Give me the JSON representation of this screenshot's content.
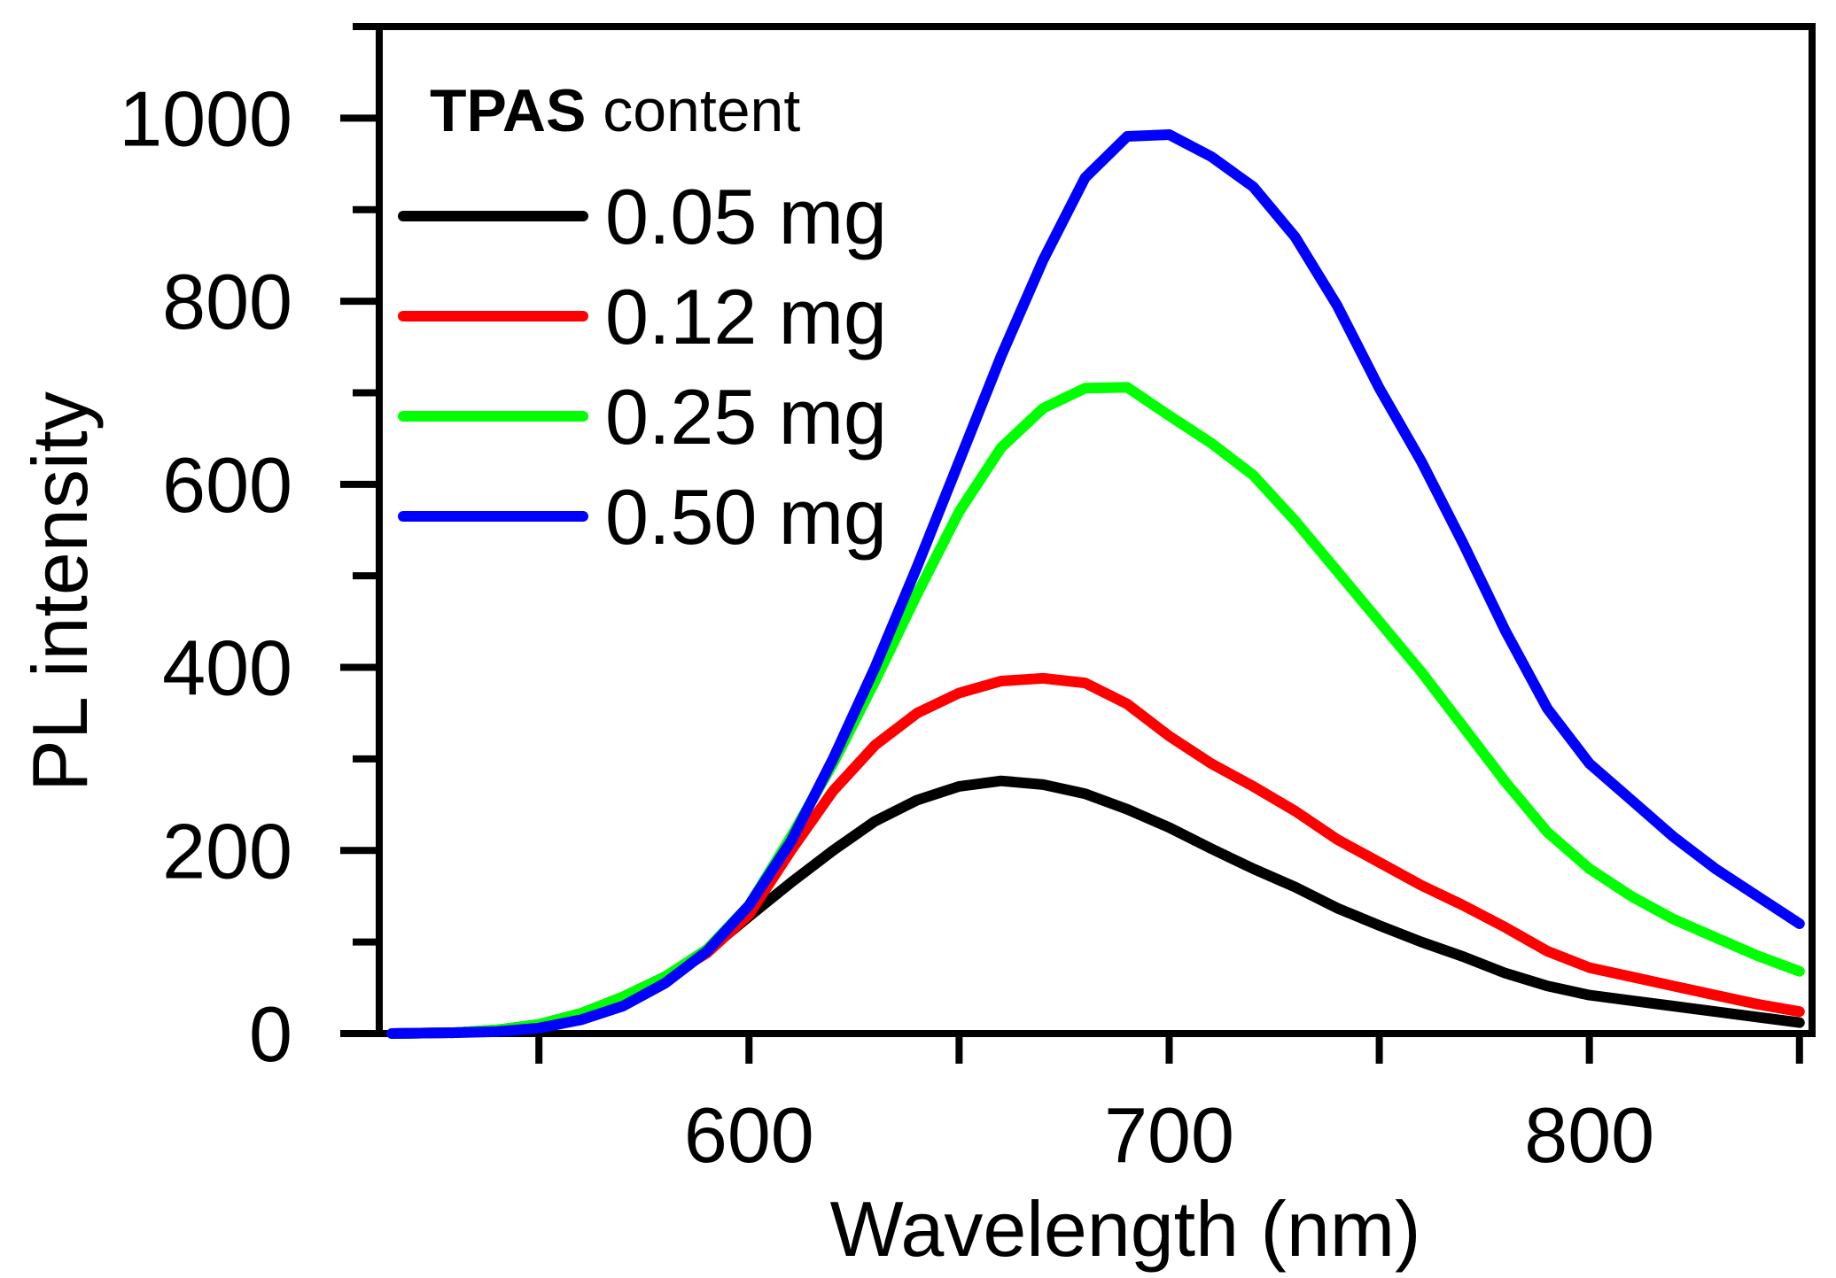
{
  "chart_data": {
    "type": "line",
    "title": "",
    "xlabel": "Wavelength (nm)",
    "ylabel": "PL intensity",
    "xlim": [
      512,
      853
    ],
    "ylim": [
      0,
      1100
    ],
    "xticks_major": [
      600,
      700,
      800
    ],
    "xticks_minor": [
      550,
      650,
      750,
      850
    ],
    "yticks_major": [
      0,
      200,
      400,
      600,
      800,
      1000
    ],
    "yticks_minor": [
      100,
      300,
      500,
      700,
      900,
      1100
    ],
    "grid": false,
    "legend": {
      "position": "top-left",
      "title_bold": "TPAS",
      "title_rest": " content"
    },
    "series": [
      {
        "name": "0.05 mg",
        "color": "#000000",
        "points": [
          [
            515,
            0
          ],
          [
            530,
            1
          ],
          [
            540,
            4
          ],
          [
            550,
            10
          ],
          [
            560,
            22
          ],
          [
            570,
            40
          ],
          [
            580,
            62
          ],
          [
            590,
            90
          ],
          [
            600,
            128
          ],
          [
            610,
            165
          ],
          [
            620,
            200
          ],
          [
            630,
            232
          ],
          [
            640,
            255
          ],
          [
            650,
            270
          ],
          [
            660,
            276
          ],
          [
            670,
            272
          ],
          [
            680,
            262
          ],
          [
            690,
            245
          ],
          [
            700,
            225
          ],
          [
            710,
            202
          ],
          [
            720,
            180
          ],
          [
            730,
            160
          ],
          [
            740,
            137
          ],
          [
            750,
            118
          ],
          [
            760,
            100
          ],
          [
            770,
            84
          ],
          [
            780,
            66
          ],
          [
            790,
            52
          ],
          [
            800,
            42
          ],
          [
            810,
            36
          ],
          [
            820,
            30
          ],
          [
            830,
            24
          ],
          [
            840,
            18
          ],
          [
            850,
            12
          ]
        ]
      },
      {
        "name": "0.12 mg",
        "color": "#ff0000",
        "points": [
          [
            515,
            0
          ],
          [
            530,
            1
          ],
          [
            540,
            3
          ],
          [
            550,
            8
          ],
          [
            560,
            20
          ],
          [
            570,
            38
          ],
          [
            580,
            60
          ],
          [
            590,
            88
          ],
          [
            600,
            130
          ],
          [
            610,
            200
          ],
          [
            620,
            265
          ],
          [
            630,
            315
          ],
          [
            640,
            350
          ],
          [
            650,
            372
          ],
          [
            660,
            385
          ],
          [
            670,
            388
          ],
          [
            680,
            383
          ],
          [
            690,
            360
          ],
          [
            700,
            325
          ],
          [
            710,
            295
          ],
          [
            720,
            270
          ],
          [
            730,
            243
          ],
          [
            740,
            212
          ],
          [
            750,
            187
          ],
          [
            760,
            162
          ],
          [
            770,
            140
          ],
          [
            780,
            116
          ],
          [
            790,
            90
          ],
          [
            800,
            72
          ],
          [
            810,
            62
          ],
          [
            820,
            52
          ],
          [
            830,
            42
          ],
          [
            840,
            32
          ],
          [
            850,
            24
          ]
        ]
      },
      {
        "name": "0.25 mg",
        "color": "#00ff00",
        "points": [
          [
            515,
            0
          ],
          [
            530,
            1
          ],
          [
            540,
            4
          ],
          [
            550,
            10
          ],
          [
            560,
            22
          ],
          [
            570,
            40
          ],
          [
            580,
            62
          ],
          [
            590,
            92
          ],
          [
            600,
            140
          ],
          [
            610,
            215
          ],
          [
            620,
            295
          ],
          [
            630,
            385
          ],
          [
            640,
            480
          ],
          [
            650,
            570
          ],
          [
            660,
            640
          ],
          [
            670,
            683
          ],
          [
            680,
            705
          ],
          [
            690,
            706
          ],
          [
            700,
            675
          ],
          [
            710,
            645
          ],
          [
            720,
            610
          ],
          [
            730,
            560
          ],
          [
            740,
            505
          ],
          [
            750,
            450
          ],
          [
            760,
            395
          ],
          [
            770,
            335
          ],
          [
            780,
            275
          ],
          [
            790,
            220
          ],
          [
            800,
            180
          ],
          [
            810,
            150
          ],
          [
            820,
            125
          ],
          [
            830,
            105
          ],
          [
            840,
            85
          ],
          [
            850,
            68
          ]
        ]
      },
      {
        "name": "0.50 mg",
        "color": "#0000ff",
        "points": [
          [
            515,
            0
          ],
          [
            530,
            1
          ],
          [
            540,
            2
          ],
          [
            550,
            6
          ],
          [
            560,
            15
          ],
          [
            570,
            30
          ],
          [
            580,
            55
          ],
          [
            590,
            90
          ],
          [
            600,
            140
          ],
          [
            610,
            210
          ],
          [
            620,
            300
          ],
          [
            630,
            400
          ],
          [
            640,
            510
          ],
          [
            650,
            625
          ],
          [
            660,
            740
          ],
          [
            670,
            845
          ],
          [
            680,
            935
          ],
          [
            690,
            980
          ],
          [
            700,
            982
          ],
          [
            710,
            958
          ],
          [
            720,
            925
          ],
          [
            730,
            870
          ],
          [
            740,
            795
          ],
          [
            750,
            705
          ],
          [
            760,
            625
          ],
          [
            770,
            535
          ],
          [
            780,
            440
          ],
          [
            790,
            355
          ],
          [
            800,
            295
          ],
          [
            810,
            255
          ],
          [
            820,
            215
          ],
          [
            830,
            180
          ],
          [
            840,
            150
          ],
          [
            850,
            120
          ]
        ]
      }
    ]
  }
}
